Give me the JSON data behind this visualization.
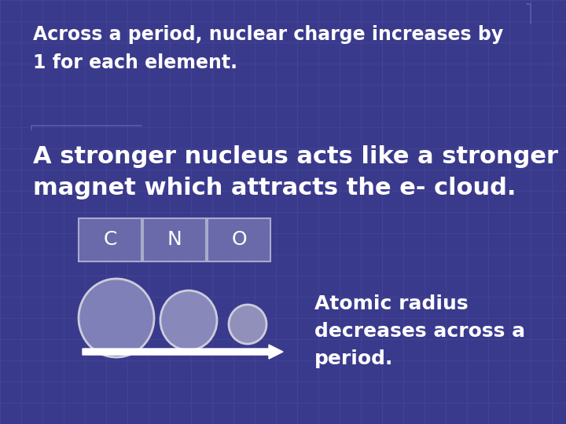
{
  "background_color": "#3a3a8c",
  "grid_color": "#5050aa",
  "text_color": "#ffffff",
  "text_line1": "Across a period, nuclear charge increases by",
  "text_line2": "1 for each element.",
  "text_line3": "A stronger nucleus acts like a stronger",
  "text_line4": "magnet which attracts the e- cloud.",
  "elements": [
    "C",
    "N",
    "O"
  ],
  "element_box_color": "#6a6aaa",
  "element_box_edge": "#aaaacc",
  "circle_colors": [
    "#8080b8",
    "#8888bb",
    "#9090bb"
  ],
  "circle_edge": "#ccccdd",
  "arrow_color": "#ffffff",
  "annotation_line1": "Atomic radius",
  "annotation_line2": "decreases across a",
  "annotation_line3": "period.",
  "font_size_text1": 17,
  "font_size_text2": 22,
  "font_size_element": 18,
  "font_size_annotation": 18,
  "bracket_color": "#6060aa"
}
